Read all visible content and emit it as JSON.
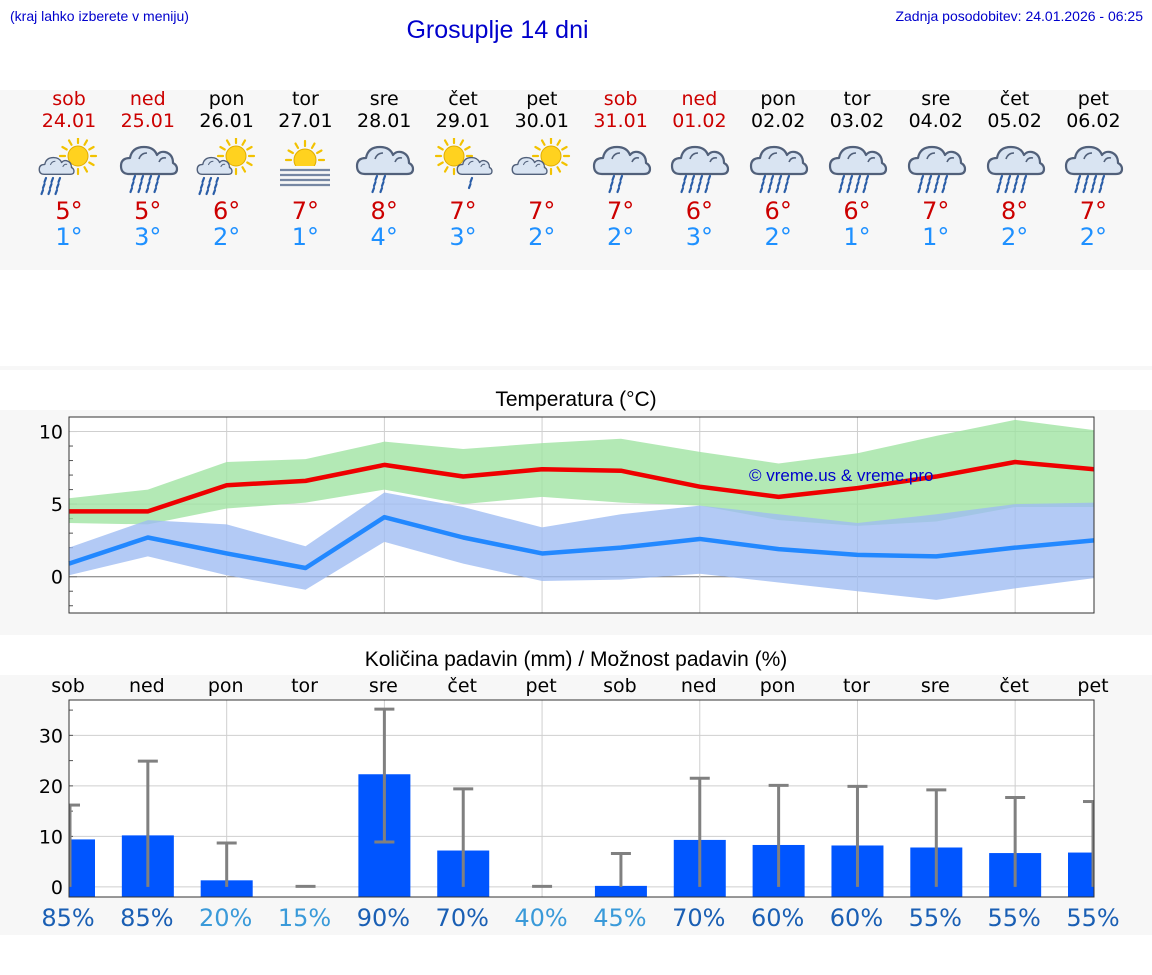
{
  "header": {
    "menu_hint": "(kraj lahko izberete v meniju)",
    "title": "Grosuplje 14 dni",
    "updated": "Zadnja posodobitev: 24.01.2026 - 06:25"
  },
  "colors": {
    "link": "#0000cc",
    "weekend": "#cc0000",
    "weekday": "#000000",
    "tmax": "#cc0000",
    "tmin": "#1e90ff",
    "bar": "#0055ff",
    "max_band": "#9de3a0",
    "min_band": "#9dbbf2",
    "max_line": "#ee0000",
    "min_line": "#2288ff"
  },
  "days": [
    {
      "name": "sob",
      "date": "24.01",
      "weekend": true,
      "icon": "partly-sunny-rain-icon",
      "tmax": "5°",
      "tmin": "1°"
    },
    {
      "name": "ned",
      "date": "25.01",
      "weekend": true,
      "icon": "cloud-rain-icon",
      "tmax": "5°",
      "tmin": "3°"
    },
    {
      "name": "pon",
      "date": "26.01",
      "weekend": false,
      "icon": "partly-sunny-rain-icon",
      "tmax": "6°",
      "tmin": "2°"
    },
    {
      "name": "tor",
      "date": "27.01",
      "weekend": false,
      "icon": "sun-fog-icon",
      "tmax": "7°",
      "tmin": "1°"
    },
    {
      "name": "sre",
      "date": "28.01",
      "weekend": false,
      "icon": "cloud-light-rain-icon",
      "tmax": "8°",
      "tmin": "4°"
    },
    {
      "name": "čet",
      "date": "29.01",
      "weekend": false,
      "icon": "sun-cloud-rain-icon",
      "tmax": "7°",
      "tmin": "3°"
    },
    {
      "name": "pet",
      "date": "30.01",
      "weekend": false,
      "icon": "partly-sunny-icon",
      "tmax": "7°",
      "tmin": "2°"
    },
    {
      "name": "sob",
      "date": "31.01",
      "weekend": true,
      "icon": "cloud-light-rain-icon",
      "tmax": "7°",
      "tmin": "2°"
    },
    {
      "name": "ned",
      "date": "01.02",
      "weekend": true,
      "icon": "cloud-rain-icon",
      "tmax": "6°",
      "tmin": "3°"
    },
    {
      "name": "pon",
      "date": "02.02",
      "weekend": false,
      "icon": "cloud-rain-icon",
      "tmax": "6°",
      "tmin": "2°"
    },
    {
      "name": "tor",
      "date": "03.02",
      "weekend": false,
      "icon": "cloud-rain-icon",
      "tmax": "6°",
      "tmin": "1°"
    },
    {
      "name": "sre",
      "date": "04.02",
      "weekend": false,
      "icon": "cloud-rain-icon",
      "tmax": "7°",
      "tmin": "1°"
    },
    {
      "name": "čet",
      "date": "05.02",
      "weekend": false,
      "icon": "cloud-rain-icon",
      "tmax": "8°",
      "tmin": "2°"
    },
    {
      "name": "pet",
      "date": "06.02",
      "weekend": false,
      "icon": "cloud-rain-icon",
      "tmax": "7°",
      "tmin": "2°"
    }
  ],
  "chart_data": [
    {
      "type": "area",
      "title": "Temperatura (°C)",
      "watermark": "© vreme.us & vreme.pro",
      "ylim": [
        -2.5,
        11
      ],
      "yticks": [
        0,
        5,
        10
      ],
      "grid": true,
      "series": [
        {
          "name": "tmax",
          "values": [
            4.5,
            4.5,
            6.3,
            6.6,
            7.7,
            6.9,
            7.4,
            7.3,
            6.2,
            5.5,
            6.1,
            6.9,
            7.9,
            7.4
          ]
        },
        {
          "name": "tmax_upper",
          "values": [
            5.4,
            6.0,
            7.9,
            8.1,
            9.3,
            8.8,
            9.2,
            9.5,
            8.6,
            7.8,
            8.5,
            9.7,
            10.8,
            10.1
          ]
        },
        {
          "name": "tmax_lower",
          "values": [
            3.7,
            3.6,
            4.7,
            5.1,
            6.0,
            5.0,
            5.5,
            5.1,
            4.9,
            3.9,
            3.5,
            3.8,
            4.8,
            4.8
          ]
        },
        {
          "name": "tmin",
          "values": [
            0.9,
            2.7,
            1.6,
            0.6,
            4.1,
            2.7,
            1.6,
            2.0,
            2.6,
            1.9,
            1.5,
            1.4,
            2.0,
            2.5
          ]
        },
        {
          "name": "tmin_upper",
          "values": [
            2.0,
            3.9,
            3.6,
            2.1,
            5.8,
            4.8,
            3.4,
            4.3,
            4.9,
            4.3,
            3.7,
            4.3,
            5.0,
            5.1
          ]
        },
        {
          "name": "tmin_lower",
          "values": [
            0.1,
            1.4,
            0.1,
            -0.9,
            2.4,
            0.9,
            -0.3,
            -0.2,
            0.2,
            -0.4,
            -1.0,
            -1.6,
            -0.8,
            -0.1
          ]
        }
      ]
    },
    {
      "type": "bar",
      "title": "Količina padavin (mm) / Možnost padavin (%)",
      "categories": [
        "sob",
        "ned",
        "pon",
        "tor",
        "sre",
        "čet",
        "pet",
        "sob",
        "ned",
        "pon",
        "tor",
        "sre",
        "čet",
        "pet"
      ],
      "ylim": [
        -2,
        37
      ],
      "yticks": [
        0,
        10,
        20,
        30
      ],
      "series": [
        {
          "name": "amount_mm",
          "values": [
            9.4,
            10.2,
            1.3,
            0,
            22.3,
            7.2,
            0,
            0.2,
            9.3,
            8.3,
            8.2,
            7.8,
            6.7,
            6.8
          ]
        },
        {
          "name": "max_mm",
          "values": [
            16.2,
            24.9,
            8.7,
            0.1,
            35.2,
            19.4,
            0.1,
            6.6,
            21.5,
            20.1,
            19.9,
            19.2,
            17.7,
            16.9
          ]
        },
        {
          "name": "min_mm",
          "values": [
            0,
            0,
            0,
            0,
            8.9,
            0,
            0,
            0,
            0,
            0,
            0,
            0,
            0,
            0
          ]
        }
      ],
      "probability": [
        "85%",
        "85%",
        "20%",
        "15%",
        "90%",
        "70%",
        "40%",
        "45%",
        "70%",
        "60%",
        "60%",
        "55%",
        "55%",
        "55%"
      ],
      "probability_colors": [
        "#1a5fb4",
        "#1a5fb4",
        "#3a9ad9",
        "#3a9ad9",
        "#1a5fb4",
        "#1a5fb4",
        "#3a9ad9",
        "#3a9ad9",
        "#1a5fb4",
        "#1a5fb4",
        "#1a5fb4",
        "#1a5fb4",
        "#1a5fb4",
        "#1a5fb4"
      ]
    }
  ]
}
